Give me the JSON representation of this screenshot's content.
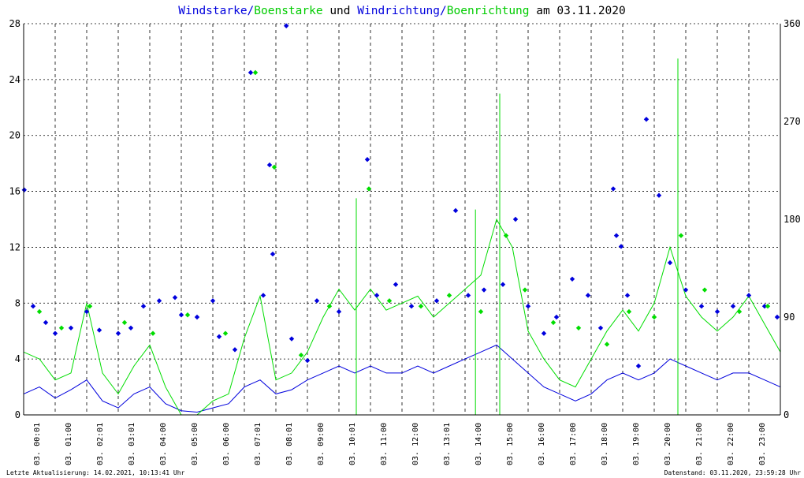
{
  "colors": {
    "wind": "#0000dd",
    "gust": "#00dd00",
    "text": "#000000",
    "grid": "#000000"
  },
  "title": {
    "part1": "Windstarke/",
    "part2": "Boenstarke",
    "part3": " und ",
    "part4": "Windrichtung/",
    "part5": "Boenrichtung",
    "part6": " am 03.11.2020"
  },
  "footer": {
    "left": "Letzte Aktualisierung: 14.02.2021, 10:13:41 Uhr",
    "right": "Datenstand: 03.11.2020, 23:59:28 Uhr"
  },
  "chart_data": {
    "type": "line",
    "x_unit": "hour of day",
    "xlim": [
      0,
      24
    ],
    "x_ticks": [
      "03. 00:01",
      "03. 01:00",
      "03. 02:01",
      "03. 03:01",
      "03. 04:00",
      "03. 05:00",
      "03. 06:00",
      "03. 07:01",
      "03. 08:01",
      "03. 09:00",
      "03. 10:01",
      "03. 11:00",
      "03. 12:00",
      "03. 13:01",
      "03. 14:00",
      "03. 15:00",
      "03. 16:00",
      "03. 17:00",
      "03. 18:00",
      "03. 19:00",
      "03. 20:00",
      "03. 21:00",
      "03. 22:00",
      "03. 23:00"
    ],
    "y_left": {
      "lim": [
        0,
        28
      ],
      "ticks": [
        0,
        4,
        8,
        12,
        16,
        20,
        24,
        28
      ]
    },
    "y_right": {
      "lim": [
        0,
        360
      ],
      "ticks": [
        0,
        90,
        180,
        270,
        360
      ]
    },
    "series": [
      {
        "name": "Windstarke",
        "type": "line",
        "axis": "left",
        "color": "#0000dd",
        "points": [
          [
            0.0,
            1.5
          ],
          [
            0.5,
            2.0
          ],
          [
            1.0,
            1.2
          ],
          [
            1.5,
            1.8
          ],
          [
            2.0,
            2.5
          ],
          [
            2.5,
            1.0
          ],
          [
            3.0,
            0.5
          ],
          [
            3.5,
            1.5
          ],
          [
            4.0,
            2.0
          ],
          [
            4.5,
            0.8
          ],
          [
            5.0,
            0.3
          ],
          [
            5.5,
            0.2
          ],
          [
            6.0,
            0.5
          ],
          [
            6.5,
            0.8
          ],
          [
            7.0,
            2.0
          ],
          [
            7.5,
            2.5
          ],
          [
            8.0,
            1.5
          ],
          [
            8.5,
            1.8
          ],
          [
            9.0,
            2.5
          ],
          [
            9.5,
            3.0
          ],
          [
            10.0,
            3.5
          ],
          [
            10.5,
            3.0
          ],
          [
            11.0,
            3.5
          ],
          [
            11.5,
            3.0
          ],
          [
            12.0,
            3.0
          ],
          [
            12.5,
            3.5
          ],
          [
            13.0,
            3.0
          ],
          [
            13.5,
            3.5
          ],
          [
            14.0,
            4.0
          ],
          [
            14.5,
            4.5
          ],
          [
            15.0,
            5.0
          ],
          [
            15.5,
            4.0
          ],
          [
            16.0,
            3.0
          ],
          [
            16.5,
            2.0
          ],
          [
            17.0,
            1.5
          ],
          [
            17.5,
            1.0
          ],
          [
            18.0,
            1.5
          ],
          [
            18.5,
            2.5
          ],
          [
            19.0,
            3.0
          ],
          [
            19.5,
            2.5
          ],
          [
            20.0,
            3.0
          ],
          [
            20.5,
            4.0
          ],
          [
            21.0,
            3.5
          ],
          [
            21.5,
            3.0
          ],
          [
            22.0,
            2.5
          ],
          [
            22.5,
            3.0
          ],
          [
            23.0,
            3.0
          ],
          [
            23.5,
            2.5
          ],
          [
            24.0,
            2.0
          ]
        ]
      },
      {
        "name": "Boenstarke",
        "type": "line",
        "axis": "left",
        "color": "#00dd00",
        "points": [
          [
            0.0,
            4.5
          ],
          [
            0.5,
            4.0
          ],
          [
            1.0,
            2.5
          ],
          [
            1.5,
            3.0
          ],
          [
            2.0,
            8.0
          ],
          [
            2.5,
            3.0
          ],
          [
            3.0,
            1.5
          ],
          [
            3.5,
            3.5
          ],
          [
            4.0,
            5.0
          ],
          [
            4.5,
            2.0
          ],
          [
            5.0,
            0.0
          ],
          [
            5.5,
            0.0
          ],
          [
            6.0,
            1.0
          ],
          [
            6.5,
            1.5
          ],
          [
            7.0,
            5.5
          ],
          [
            7.5,
            8.5
          ],
          [
            8.0,
            2.5
          ],
          [
            8.5,
            3.0
          ],
          [
            9.0,
            4.5
          ],
          [
            9.5,
            7.0
          ],
          [
            10.0,
            9.0
          ],
          [
            10.5,
            7.5
          ],
          [
            11.0,
            9.0
          ],
          [
            11.5,
            7.5
          ],
          [
            12.0,
            8.0
          ],
          [
            12.5,
            8.5
          ],
          [
            13.0,
            7.0
          ],
          [
            13.5,
            8.0
          ],
          [
            14.0,
            9.0
          ],
          [
            14.5,
            10.0
          ],
          [
            15.0,
            14.0
          ],
          [
            15.5,
            12.0
          ],
          [
            16.0,
            6.0
          ],
          [
            16.5,
            4.0
          ],
          [
            17.0,
            2.5
          ],
          [
            17.5,
            2.0
          ],
          [
            18.0,
            4.0
          ],
          [
            18.5,
            6.0
          ],
          [
            19.0,
            7.5
          ],
          [
            19.5,
            6.0
          ],
          [
            20.0,
            8.0
          ],
          [
            20.5,
            12.0
          ],
          [
            21.0,
            8.5
          ],
          [
            21.5,
            7.0
          ],
          [
            22.0,
            6.0
          ],
          [
            22.5,
            7.0
          ],
          [
            23.0,
            8.5
          ],
          [
            23.5,
            6.5
          ],
          [
            24.0,
            4.5
          ]
        ],
        "annotated_peaks": [
          [
            10.55,
            15.5
          ],
          [
            14.33,
            14.7
          ],
          [
            15.1,
            23.0
          ],
          [
            20.75,
            25.5
          ]
        ]
      },
      {
        "name": "Windrichtung",
        "type": "scatter",
        "axis": "right",
        "color": "#0000dd",
        "points": [
          [
            0.02,
            207
          ],
          [
            0.3,
            100
          ],
          [
            0.7,
            85
          ],
          [
            1.0,
            75
          ],
          [
            1.5,
            80
          ],
          [
            2.0,
            95
          ],
          [
            2.4,
            78
          ],
          [
            3.0,
            75
          ],
          [
            3.4,
            80
          ],
          [
            3.8,
            100
          ],
          [
            4.3,
            105
          ],
          [
            4.8,
            108
          ],
          [
            5.0,
            92
          ],
          [
            5.5,
            90
          ],
          [
            6.0,
            105
          ],
          [
            6.2,
            72
          ],
          [
            6.7,
            60
          ],
          [
            7.2,
            315
          ],
          [
            7.6,
            110
          ],
          [
            7.8,
            230
          ],
          [
            7.9,
            148
          ],
          [
            8.33,
            358
          ],
          [
            8.5,
            70
          ],
          [
            9.0,
            50
          ],
          [
            9.3,
            105
          ],
          [
            10.0,
            95
          ],
          [
            10.9,
            235
          ],
          [
            11.2,
            110
          ],
          [
            11.8,
            120
          ],
          [
            12.3,
            100
          ],
          [
            13.1,
            105
          ],
          [
            13.7,
            188
          ],
          [
            14.1,
            110
          ],
          [
            14.6,
            115
          ],
          [
            15.2,
            120
          ],
          [
            15.6,
            180
          ],
          [
            16.0,
            100
          ],
          [
            16.5,
            75
          ],
          [
            16.9,
            90
          ],
          [
            17.4,
            125
          ],
          [
            17.9,
            110
          ],
          [
            18.3,
            80
          ],
          [
            18.7,
            208
          ],
          [
            18.8,
            165
          ],
          [
            18.95,
            155
          ],
          [
            19.15,
            110
          ],
          [
            19.5,
            45
          ],
          [
            19.75,
            272
          ],
          [
            20.15,
            202
          ],
          [
            20.5,
            140
          ],
          [
            21.0,
            115
          ],
          [
            21.5,
            100
          ],
          [
            22.0,
            95
          ],
          [
            22.5,
            100
          ],
          [
            23.0,
            110
          ],
          [
            23.5,
            100
          ],
          [
            23.9,
            90
          ]
        ]
      },
      {
        "name": "Boenrichtung",
        "type": "scatter",
        "axis": "right",
        "color": "#00dd00",
        "points": [
          [
            0.5,
            95
          ],
          [
            1.2,
            80
          ],
          [
            2.1,
            100
          ],
          [
            3.2,
            85
          ],
          [
            4.1,
            75
          ],
          [
            5.2,
            92
          ],
          [
            6.4,
            75
          ],
          [
            7.35,
            315
          ],
          [
            7.95,
            228
          ],
          [
            8.8,
            55
          ],
          [
            9.7,
            100
          ],
          [
            10.95,
            208
          ],
          [
            11.6,
            105
          ],
          [
            12.6,
            100
          ],
          [
            13.5,
            110
          ],
          [
            14.5,
            95
          ],
          [
            15.3,
            165
          ],
          [
            15.9,
            115
          ],
          [
            16.8,
            85
          ],
          [
            17.6,
            80
          ],
          [
            18.5,
            65
          ],
          [
            19.2,
            95
          ],
          [
            20.0,
            90
          ],
          [
            20.85,
            165
          ],
          [
            21.6,
            115
          ],
          [
            22.7,
            95
          ],
          [
            23.6,
            100
          ]
        ]
      }
    ]
  }
}
